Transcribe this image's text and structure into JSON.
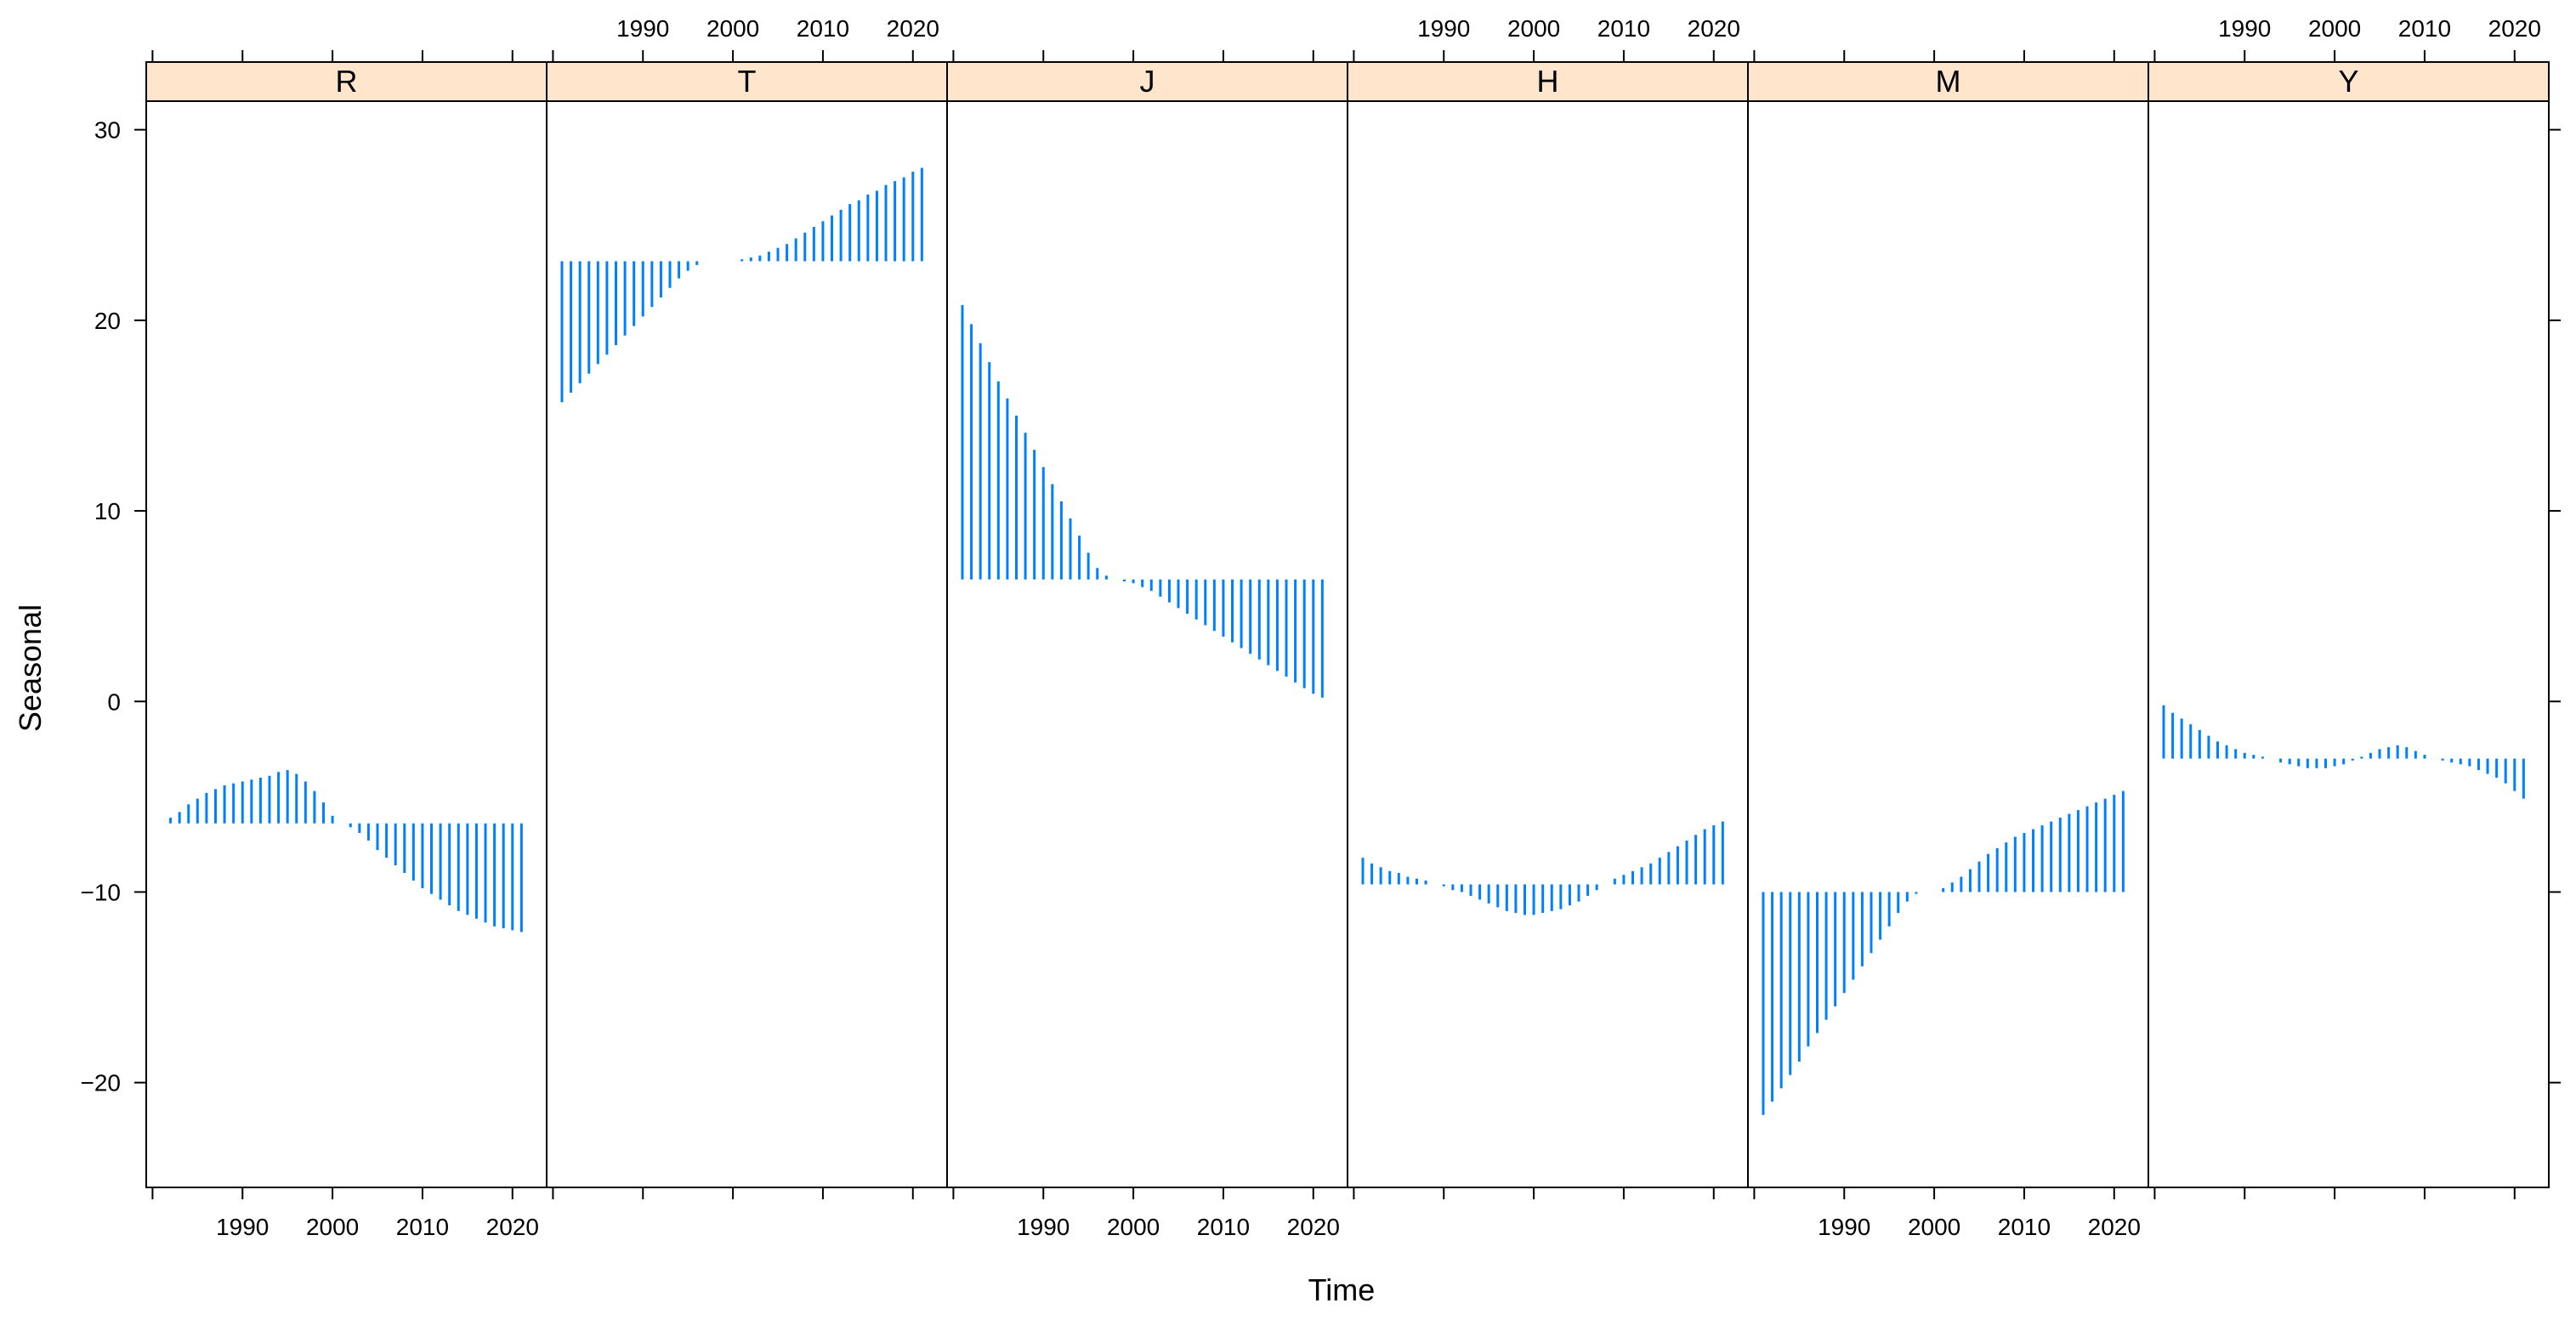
{
  "chart_data": {
    "type": "bar",
    "style": "seasonal subseries (vertical lines from each panel's mean)",
    "xlabel": "Time",
    "ylabel": "Seasonal",
    "ylim": [
      -25.5,
      31.5
    ],
    "yticks": [
      -20,
      -10,
      0,
      10,
      20,
      30
    ],
    "xlim": [
      1979.3,
      2023.8
    ],
    "xticks": [
      1990,
      2000,
      2010,
      2020
    ],
    "strip_color": "#ffe5cc",
    "line_color": "#0080ff",
    "panels": [
      {
        "name": "R",
        "mean": -6.4,
        "years": [
          1981,
          2021
        ],
        "values": [
          -6.4,
          -6.1,
          -5.8,
          -5.4,
          -5.1,
          -4.8,
          -4.6,
          -4.4,
          -4.3,
          -4.2,
          -4.1,
          -4.0,
          -3.9,
          -3.7,
          -3.6,
          -3.8,
          -4.2,
          -4.7,
          -5.3,
          -6.0,
          -6.4,
          -6.6,
          -6.9,
          -7.3,
          -7.8,
          -8.2,
          -8.6,
          -9.0,
          -9.4,
          -9.8,
          -10.1,
          -10.4,
          -10.7,
          -11.0,
          -11.2,
          -11.4,
          -11.6,
          -11.8,
          -11.9,
          -12.0,
          -12.1
        ]
      },
      {
        "name": "T",
        "mean": 23.1,
        "years": [
          1981,
          2021
        ],
        "values": [
          15.7,
          16.2,
          16.7,
          17.2,
          17.7,
          18.2,
          18.7,
          19.2,
          19.7,
          20.2,
          20.7,
          21.2,
          21.7,
          22.2,
          22.6,
          22.9,
          23.1,
          23.1,
          23.1,
          23.1,
          23.2,
          23.3,
          23.4,
          23.6,
          23.8,
          24.0,
          24.3,
          24.6,
          24.9,
          25.2,
          25.5,
          25.8,
          26.1,
          26.3,
          26.6,
          26.8,
          27.1,
          27.3,
          27.5,
          27.8,
          28.0
        ]
      },
      {
        "name": "J",
        "mean": 6.4,
        "years": [
          1981,
          2021
        ],
        "values": [
          20.8,
          19.8,
          18.8,
          17.8,
          16.8,
          15.9,
          15.0,
          14.1,
          13.2,
          12.3,
          11.4,
          10.5,
          9.6,
          8.7,
          7.8,
          7.0,
          6.6,
          6.4,
          6.3,
          6.2,
          6.0,
          5.8,
          5.5,
          5.2,
          4.9,
          4.6,
          4.3,
          4.0,
          3.7,
          3.4,
          3.1,
          2.8,
          2.5,
          2.2,
          1.9,
          1.6,
          1.3,
          1.0,
          0.7,
          0.4,
          0.2
        ]
      },
      {
        "name": "H",
        "mean": -9.6,
        "years": [
          1981,
          2021
        ],
        "values": [
          -8.2,
          -8.5,
          -8.7,
          -8.9,
          -9.0,
          -9.2,
          -9.3,
          -9.4,
          -9.6,
          -9.7,
          -9.9,
          -10.0,
          -10.2,
          -10.4,
          -10.6,
          -10.8,
          -11.0,
          -11.1,
          -11.2,
          -11.2,
          -11.1,
          -11.0,
          -10.9,
          -10.7,
          -10.5,
          -10.2,
          -9.9,
          -9.6,
          -9.3,
          -9.1,
          -8.9,
          -8.7,
          -8.5,
          -8.2,
          -7.9,
          -7.6,
          -7.3,
          -7.0,
          -6.7,
          -6.5,
          -6.3
        ]
      },
      {
        "name": "M",
        "mean": -10.0,
        "years": [
          1981,
          2021
        ],
        "values": [
          -21.7,
          -21.0,
          -20.3,
          -19.6,
          -18.9,
          -18.1,
          -17.4,
          -16.7,
          -16.0,
          -15.3,
          -14.6,
          -13.9,
          -13.2,
          -12.5,
          -11.8,
          -11.1,
          -10.5,
          -10.1,
          -10.0,
          -10.0,
          -9.8,
          -9.5,
          -9.2,
          -8.8,
          -8.4,
          -8.0,
          -7.7,
          -7.4,
          -7.1,
          -6.9,
          -6.7,
          -6.5,
          -6.3,
          -6.1,
          -5.9,
          -5.7,
          -5.5,
          -5.3,
          -5.1,
          -4.9,
          -4.7
        ]
      },
      {
        "name": "Y",
        "mean": -3.0,
        "years": [
          1981,
          2021
        ],
        "values": [
          -0.2,
          -0.6,
          -0.9,
          -1.2,
          -1.5,
          -1.8,
          -2.1,
          -2.3,
          -2.5,
          -2.7,
          -2.8,
          -2.9,
          -3.0,
          -3.2,
          -3.3,
          -3.4,
          -3.5,
          -3.5,
          -3.5,
          -3.4,
          -3.3,
          -3.1,
          -2.9,
          -2.7,
          -2.5,
          -2.4,
          -2.3,
          -2.4,
          -2.6,
          -2.8,
          -3.0,
          -3.1,
          -3.2,
          -3.3,
          -3.4,
          -3.6,
          -3.8,
          -4.0,
          -4.3,
          -4.7,
          -5.1
        ]
      }
    ]
  }
}
